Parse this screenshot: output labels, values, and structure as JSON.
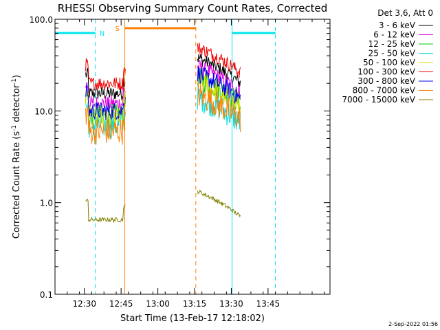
{
  "chart_data": {
    "type": "line",
    "title": "RHESSI Observing Summary Count Rates, Corrected",
    "xlabel": "Start Time (13-Feb-17 12:18:02)",
    "ylabel_main": "Corrected Count Rate (s",
    "ylabel_sup1": "-1",
    "ylabel_mid": " detector",
    "ylabel_sup2": "-1",
    "ylabel_end": ")",
    "yscale": "log",
    "ylim": [
      0.1,
      100
    ],
    "xlim_minutes": [
      0,
      112.3
    ],
    "y_ticks": [
      {
        "value": 0.1,
        "label": "0.1"
      },
      {
        "value": 1,
        "label": "1.0"
      },
      {
        "value": 10,
        "label": "10.0"
      },
      {
        "value": 100,
        "label": "100.0"
      }
    ],
    "x_ticks": [
      {
        "minutes": 12,
        "label": "12:30"
      },
      {
        "minutes": 27,
        "label": "12:45"
      },
      {
        "minutes": 42,
        "label": "13:00"
      },
      {
        "minutes": 57,
        "label": "13:15"
      },
      {
        "minutes": 72,
        "label": "13:30"
      },
      {
        "minutes": 87,
        "label": "13:45"
      }
    ],
    "legend_title": "Det 3,6, Att 0",
    "legend_position": "top-right",
    "series": [
      {
        "name": "3 - 6 keV",
        "color": "#000000",
        "seg1": 15.5,
        "seg2": 20,
        "noise": 0.15
      },
      {
        "name": "6 - 12 keV",
        "color": "#dd00dd",
        "seg1": 12,
        "seg2": 16,
        "noise": 0.18
      },
      {
        "name": "12 - 25 keV",
        "color": "#00cc00",
        "seg1": 9,
        "seg2": 12,
        "noise": 0.25
      },
      {
        "name": "25 - 50 keV",
        "color": "#00dddd",
        "seg1": 7,
        "seg2": 7.5,
        "noise": 0.3
      },
      {
        "name": "50 - 100 keV",
        "color": "#dddd00",
        "seg1": 8.5,
        "seg2": 11,
        "noise": 0.25
      },
      {
        "name": "100 - 300 keV",
        "color": "#ee0000",
        "seg1": 20,
        "seg2": 26,
        "noise": 0.15
      },
      {
        "name": "300 - 800 keV",
        "color": "#0000ee",
        "seg1": 10,
        "seg2": 13.5,
        "noise": 0.2
      },
      {
        "name": "800 - 7000 keV",
        "color": "#ff8000",
        "seg1": 6,
        "seg2": 8,
        "noise": 0.3
      },
      {
        "name": "7000 - 15000 keV",
        "color": "#808000",
        "seg1": 0.65,
        "seg2": 0.7,
        "noise": 0.05
      }
    ],
    "data_intervals": [
      [
        12.5,
        28.8
      ],
      [
        58.2,
        75.8
      ]
    ],
    "night_marker": {
      "label": "N",
      "color": "#00e5ee",
      "segments": [
        [
          0,
          16.5
        ],
        [
          72.3,
          90
        ]
      ],
      "dashed_x": [
        16.5,
        90
      ],
      "solid_x": [
        0,
        72.3
      ]
    },
    "saa_marker": {
      "label": "S",
      "color": "#ff8000",
      "segments": [
        [
          28.5,
          57.5
        ]
      ],
      "dashed_x": [
        57.5
      ],
      "solid_x": [
        28.5
      ]
    },
    "timestamp": "2-Sep-2022 01:56"
  }
}
